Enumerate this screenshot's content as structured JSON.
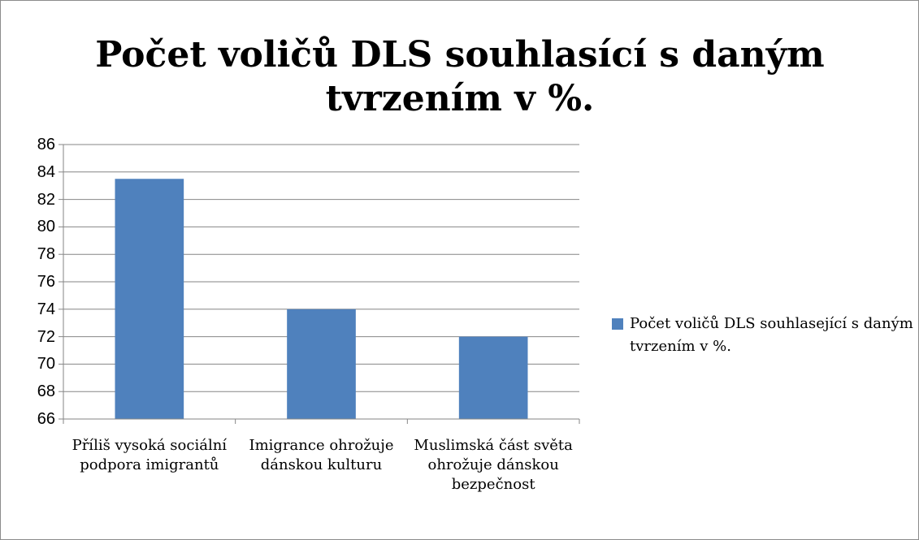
{
  "chart_data": {
    "type": "bar",
    "title": "Počet voličů DLS souhlasící s daným tvrzením v %.",
    "categories": [
      "Příliš vysoká sociální podpora imigrantů",
      "Imigrance ohrožuje dánskou kulturu",
      "Muslimská část světa ohrožuje dánskou bezpečnost"
    ],
    "series": [
      {
        "name": "Počet voličů DLS souhlasející s daným tvrzením v %.",
        "color": "#4f81bd",
        "values": [
          83.5,
          74,
          72
        ]
      }
    ],
    "ylim": [
      66,
      86
    ],
    "yticks": [
      66,
      68,
      70,
      72,
      74,
      76,
      78,
      80,
      82,
      84,
      86
    ],
    "grid": true,
    "legend": "right"
  }
}
